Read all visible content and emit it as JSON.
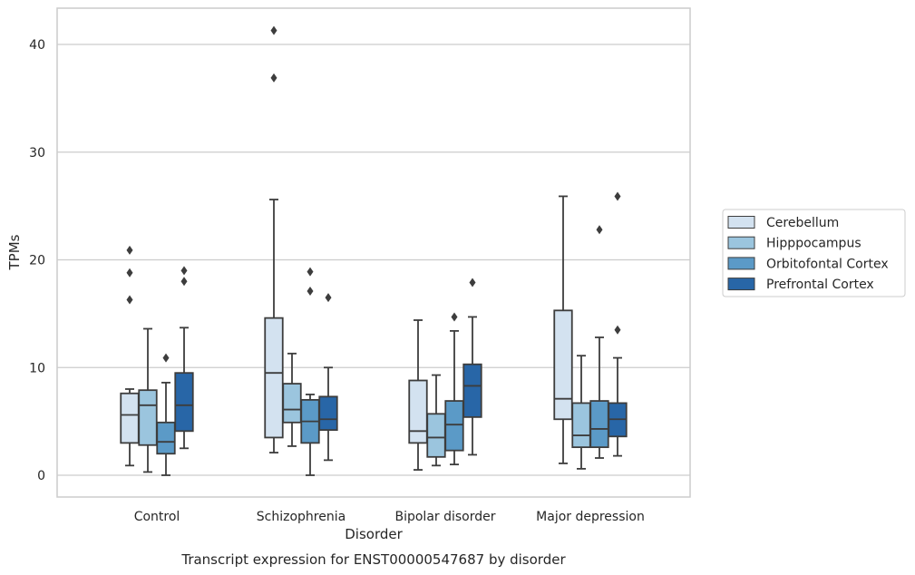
{
  "caption": "Transcript expression for ENST00000547687 by disorder",
  "chart_data": {
    "type": "box",
    "xlabel": "Disorder",
    "ylabel": "TPMs",
    "ylim": [
      -2,
      43.5
    ],
    "yticks": [
      0,
      10,
      20,
      30,
      40
    ],
    "grid": "horizontal",
    "legend_placement": "right",
    "categories": [
      "Control",
      "Schizophrenia",
      "Bipolar disorder",
      "Major depression"
    ],
    "series": [
      {
        "name": "Cerebellum",
        "color": "#d3e2f0",
        "boxes": [
          {
            "whisker_low": 0.9,
            "q1": 3.0,
            "median": 5.6,
            "q3": 7.6,
            "whisker_high": 8.0,
            "outliers": [
              16.3,
              18.8,
              20.9
            ]
          },
          {
            "whisker_low": 2.1,
            "q1": 3.5,
            "median": 9.5,
            "q3": 14.6,
            "whisker_high": 25.6,
            "outliers": [
              36.9,
              41.3
            ]
          },
          {
            "whisker_low": 0.5,
            "q1": 3.0,
            "median": 4.1,
            "q3": 8.8,
            "whisker_high": 14.4,
            "outliers": []
          },
          {
            "whisker_low": 1.1,
            "q1": 5.2,
            "median": 7.1,
            "q3": 15.3,
            "whisker_high": 25.9,
            "outliers": []
          }
        ]
      },
      {
        "name": "Hipppocampus",
        "color": "#9bc5de",
        "boxes": [
          {
            "whisker_low": 0.3,
            "q1": 2.8,
            "median": 6.5,
            "q3": 7.9,
            "whisker_high": 13.6,
            "outliers": []
          },
          {
            "whisker_low": 2.7,
            "q1": 4.9,
            "median": 6.1,
            "q3": 8.5,
            "whisker_high": 11.3,
            "outliers": []
          },
          {
            "whisker_low": 0.9,
            "q1": 1.7,
            "median": 3.5,
            "q3": 5.7,
            "whisker_high": 9.3,
            "outliers": []
          },
          {
            "whisker_low": 0.6,
            "q1": 2.6,
            "median": 3.7,
            "q3": 6.7,
            "whisker_high": 11.1,
            "outliers": []
          }
        ]
      },
      {
        "name": "Orbitofontal Cortex",
        "color": "#5b9ac7",
        "boxes": [
          {
            "whisker_low": 0.0,
            "q1": 2.0,
            "median": 3.1,
            "q3": 4.9,
            "whisker_high": 8.6,
            "outliers": [
              10.9
            ]
          },
          {
            "whisker_low": 0.0,
            "q1": 3.0,
            "median": 5.0,
            "q3": 7.0,
            "whisker_high": 7.5,
            "outliers": [
              17.1,
              18.9
            ]
          },
          {
            "whisker_low": 1.0,
            "q1": 2.3,
            "median": 4.7,
            "q3": 6.9,
            "whisker_high": 13.4,
            "outliers": [
              14.7
            ]
          },
          {
            "whisker_low": 1.6,
            "q1": 2.6,
            "median": 4.3,
            "q3": 6.9,
            "whisker_high": 12.8,
            "outliers": [
              22.8
            ]
          }
        ]
      },
      {
        "name": "Prefrontal Cortex",
        "color": "#2866a7",
        "boxes": [
          {
            "whisker_low": 2.5,
            "q1": 4.1,
            "median": 6.5,
            "q3": 9.5,
            "whisker_high": 13.7,
            "outliers": [
              18.0,
              19.0
            ]
          },
          {
            "whisker_low": 1.4,
            "q1": 4.2,
            "median": 5.2,
            "q3": 7.3,
            "whisker_high": 10.0,
            "outliers": [
              16.5
            ]
          },
          {
            "whisker_low": 1.9,
            "q1": 5.4,
            "median": 8.3,
            "q3": 10.3,
            "whisker_high": 14.7,
            "outliers": [
              17.9
            ]
          },
          {
            "whisker_low": 1.8,
            "q1": 3.6,
            "median": 5.2,
            "q3": 6.7,
            "whisker_high": 10.9,
            "outliers": [
              13.5,
              25.9
            ]
          }
        ]
      }
    ]
  }
}
